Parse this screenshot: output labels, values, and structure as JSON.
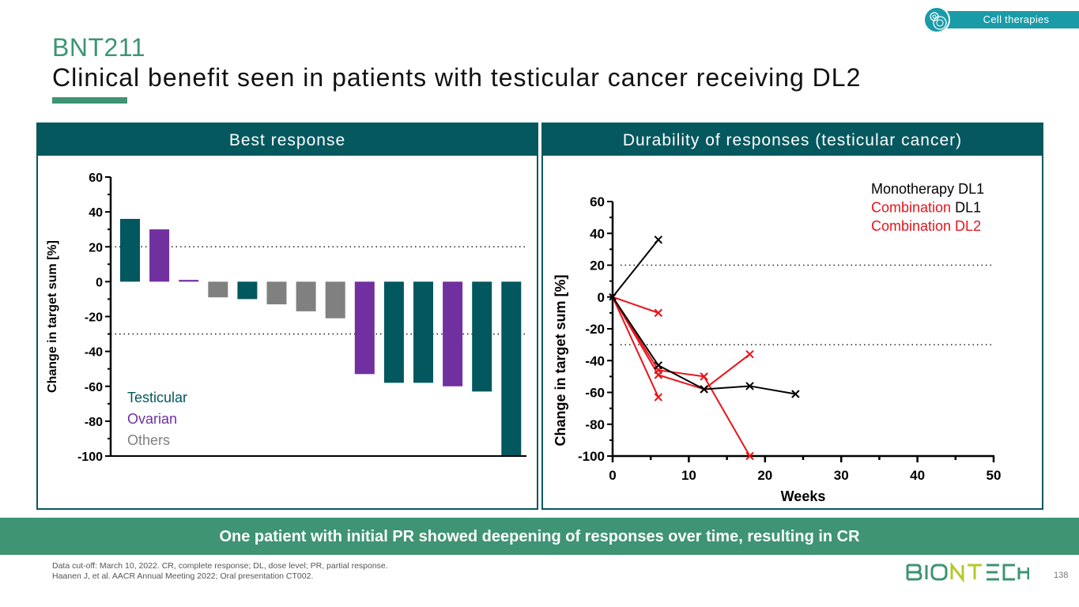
{
  "tag": {
    "label": "Cell therapies",
    "icon": "cells-icon"
  },
  "header": {
    "pretitle": "BNT211",
    "title": "Clinical benefit seen in patients with testicular cancer receiving DL2"
  },
  "panels": {
    "left": {
      "title": "Best response"
    },
    "right": {
      "title": "Durability of responses (testicular cancer)"
    }
  },
  "colors": {
    "testicular": "#03575f",
    "ovarian": "#7030a0",
    "others": "#808080",
    "monotherapy": "#000000",
    "combination": "#e8141a",
    "brand_green": "#3e9473",
    "panel_header": "#06585f"
  },
  "chart_data": [
    {
      "type": "bar",
      "title": "Best response",
      "xlabel": "",
      "ylabel": "Change in target sum [%]",
      "ylim": [
        -100,
        60
      ],
      "yticks": [
        60,
        40,
        20,
        0,
        -20,
        -40,
        -60,
        -80,
        -100
      ],
      "reference_lines": [
        20,
        -30
      ],
      "legend": [
        {
          "label": "Testicular",
          "key": "testicular"
        },
        {
          "label": "Ovarian",
          "key": "ovarian"
        },
        {
          "label": "Others",
          "key": "others"
        }
      ],
      "legend_position": "bottom-left",
      "bars": [
        {
          "value": 36,
          "group": "testicular"
        },
        {
          "value": 30,
          "group": "ovarian"
        },
        {
          "value": 1,
          "group": "ovarian"
        },
        {
          "value": -9,
          "group": "others"
        },
        {
          "value": -10,
          "group": "testicular"
        },
        {
          "value": -13,
          "group": "others"
        },
        {
          "value": -17,
          "group": "others"
        },
        {
          "value": -21,
          "group": "others"
        },
        {
          "value": -53,
          "group": "ovarian"
        },
        {
          "value": -58,
          "group": "testicular"
        },
        {
          "value": -58,
          "group": "testicular"
        },
        {
          "value": -60,
          "group": "ovarian"
        },
        {
          "value": -63,
          "group": "testicular"
        },
        {
          "value": -100,
          "group": "testicular"
        }
      ]
    },
    {
      "type": "line",
      "title": "Durability of responses (testicular cancer)",
      "xlabel": "Weeks",
      "ylabel": "Change in target sum [%]",
      "xlim": [
        0,
        50
      ],
      "ylim": [
        -100,
        60
      ],
      "xticks": [
        0,
        10,
        20,
        30,
        40,
        50
      ],
      "yticks": [
        60,
        40,
        20,
        0,
        -20,
        -40,
        -60,
        -80,
        -100
      ],
      "reference_lines": [
        20,
        -30
      ],
      "legend": [
        {
          "parts": [
            {
              "text": "Monotherapy DL1",
              "color": "monotherapy"
            }
          ]
        },
        {
          "parts": [
            {
              "text": "Combination",
              "color": "combination"
            },
            {
              "text": " DL1",
              "color": "monotherapy"
            }
          ]
        },
        {
          "parts": [
            {
              "text": "Combination DL2",
              "color": "combination"
            }
          ]
        }
      ],
      "legend_position": "top-right",
      "series": [
        {
          "name": "Monotherapy DL1 patient 1",
          "color": "monotherapy",
          "x": [
            0,
            6
          ],
          "y": [
            0,
            36
          ]
        },
        {
          "name": "Combination DL1 patient",
          "color": "monotherapy",
          "x": [
            0,
            6,
            12,
            18,
            24
          ],
          "y": [
            0,
            -43,
            -58,
            -56,
            -61
          ]
        },
        {
          "name": "Combination DL2 patient 1",
          "color": "combination",
          "x": [
            0,
            6
          ],
          "y": [
            0,
            -10
          ]
        },
        {
          "name": "Combination DL2 patient 2",
          "color": "combination",
          "x": [
            0,
            6
          ],
          "y": [
            0,
            -63
          ]
        },
        {
          "name": "Combination DL2 patient 3",
          "color": "combination",
          "x": [
            0,
            6,
            12,
            18
          ],
          "y": [
            0,
            -46,
            -50,
            -100
          ]
        },
        {
          "name": "Combination DL2 patient 4",
          "color": "combination",
          "x": [
            0,
            6,
            12,
            18
          ],
          "y": [
            0,
            -49,
            -58,
            -36
          ]
        }
      ]
    }
  ],
  "banner": "One patient with initial PR showed deepening of responses over time, resulting in CR",
  "footnotes": [
    "Data cut-off: March 10, 2022. CR, complete response; DL, dose level; PR, partial response.",
    "Haanen J, et al. AACR Annual Meeting 2022; Oral presentation CT002."
  ],
  "logo": {
    "text": "BIONTECH"
  },
  "page_number": "138"
}
